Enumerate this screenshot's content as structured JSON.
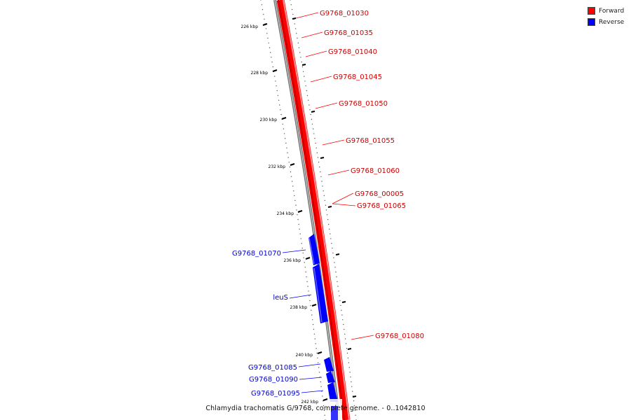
{
  "legend": {
    "forward": {
      "label": "Forward",
      "color": "#ff0000"
    },
    "reverse": {
      "label": "Reverse",
      "color": "#0000ff"
    }
  },
  "caption": "Chlamydia trachomatis G/9768, complete genome. - 0..1042810",
  "ticks": [
    "226 kbp",
    "228 kbp",
    "230 kbp",
    "232 kbp",
    "234 kbp",
    "236 kbp",
    "238 kbp",
    "240 kbp",
    "242 kbp"
  ],
  "forward_genes": [
    "G9768_01030",
    "G9768_01035",
    "G9768_01040",
    "G9768_01045",
    "G9768_01050",
    "G9768_01055",
    "G9768_01060",
    "G9768_00005",
    "G9768_01065",
    "G9768_01080"
  ],
  "reverse_genes": [
    "G9768_01070",
    "leuS",
    "G9768_01085",
    "G9768_01090",
    "G9768_01095"
  ]
}
